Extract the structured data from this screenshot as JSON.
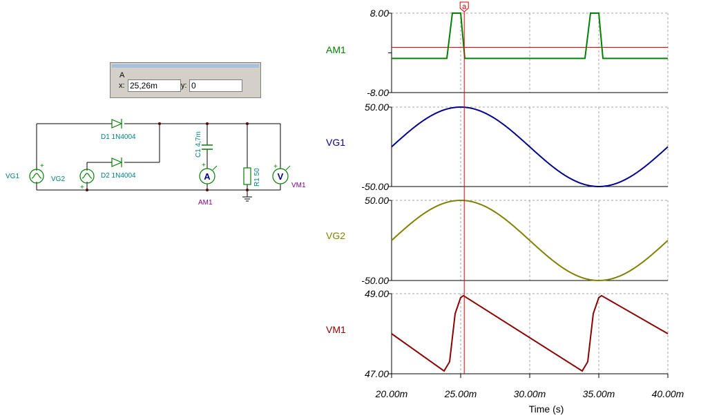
{
  "cursor_box": {
    "title": "A",
    "x_label": "x:",
    "x_value": "25,26m",
    "y_label": "y:",
    "y_value": "0"
  },
  "schematic": {
    "vg1": "VG1",
    "vg2": "VG2",
    "d1": "D1 1N4004",
    "d2": "D2 1N4004",
    "c1": "C1 4,7m",
    "r1": "R1 50",
    "am1": "AM1",
    "vm1": "VM1",
    "ammeter_symbol": "A",
    "voltmeter_symbol": "V",
    "plus": "+",
    "icons": [
      "diode-icon",
      "source-icon",
      "ground-icon",
      "capacitor-icon",
      "resistor-icon",
      "ammeter-icon",
      "voltmeter-icon"
    ]
  },
  "chart_data": {
    "type": "line",
    "xlabel": "Time (s)",
    "x_ticks": [
      "20.00m",
      "25.00m",
      "30.00m",
      "35.00m",
      "40.00m"
    ],
    "xlim": [
      0.02,
      0.04
    ],
    "cursor": {
      "label": "a",
      "x": 0.02526
    },
    "colors": {
      "AM1": "#008000",
      "VG1": "#00008b",
      "VG2": "#808000",
      "VM1": "#8b0000",
      "cursor": "#e00000"
    },
    "panels": [
      {
        "name": "AM1",
        "ylim": [
          -8,
          8
        ],
        "y_ticks": [
          "8.00",
          "-8.00"
        ],
        "zero_line": true,
        "series": {
          "points": [
            [
              0.02,
              0
            ],
            [
              0.024,
              0
            ],
            [
              0.0244,
              8
            ],
            [
              0.025,
              8
            ],
            [
              0.0253,
              0
            ],
            [
              0.034,
              0
            ],
            [
              0.0344,
              8
            ],
            [
              0.035,
              8
            ],
            [
              0.0353,
              0
            ],
            [
              0.04,
              0
            ]
          ]
        }
      },
      {
        "name": "VG1",
        "ylim": [
          -50,
          50
        ],
        "y_ticks": [
          "50.00",
          "-50.00"
        ],
        "series": {
          "fn": "sin",
          "amplitude": 50,
          "period": 0.02,
          "phase": 0
        }
      },
      {
        "name": "VG2",
        "ylim": [
          -50,
          50
        ],
        "y_ticks": [
          "50.00",
          "-50.00"
        ],
        "series": {
          "fn": "sin",
          "amplitude": 50,
          "period": 0.02,
          "phase": 0
        }
      },
      {
        "name": "VM1",
        "ylim": [
          47,
          49
        ],
        "y_ticks": [
          "49.00",
          "47.00"
        ],
        "series": {
          "points": [
            [
              0.02,
              48.0
            ],
            [
              0.0238,
              47.07
            ],
            [
              0.0242,
              47.3
            ],
            [
              0.0246,
              48.5
            ],
            [
              0.025,
              48.9
            ],
            [
              0.0252,
              48.95
            ],
            [
              0.0338,
              47.07
            ],
            [
              0.0342,
              47.3
            ],
            [
              0.0346,
              48.5
            ],
            [
              0.035,
              48.9
            ],
            [
              0.0352,
              48.95
            ],
            [
              0.04,
              48.0
            ]
          ]
        }
      }
    ]
  }
}
